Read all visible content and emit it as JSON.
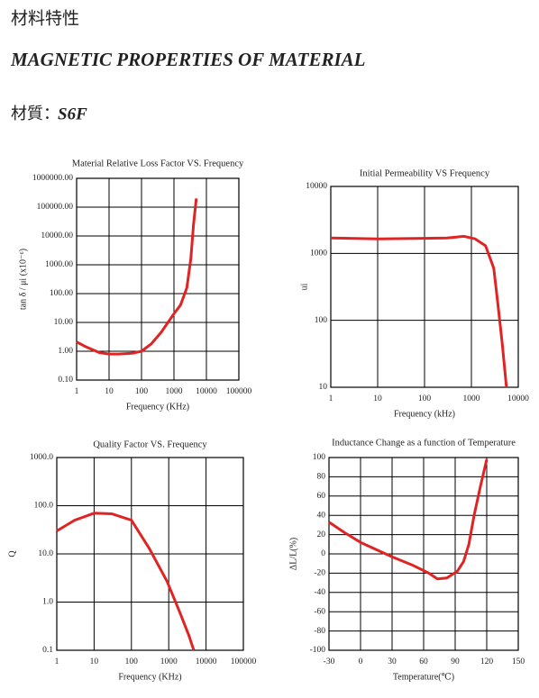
{
  "header": {
    "title_zh": "材料特性",
    "title_en": "MAGNETIC PROPERTIES OF MATERIAL",
    "material_label": "材質：",
    "material": "S6F"
  },
  "chart_data": [
    {
      "type": "line",
      "title": "Material Relative Loss Factor VS. Frequency",
      "x_label": "Frequency (KHz)",
      "y_label": "tan δ / μi (x10⁻⁶)",
      "xlog": true,
      "ylog": true,
      "grid": true,
      "color": "#e02424",
      "x": [
        1,
        2,
        5,
        10,
        20,
        50,
        100,
        200,
        400,
        1000,
        1600,
        2500,
        3300,
        4000,
        4900
      ],
      "values": [
        2.1,
        1.4,
        0.9,
        0.8,
        0.8,
        0.85,
        1.0,
        1.8,
        4.5,
        20,
        40,
        160,
        1600,
        25000,
        200000
      ],
      "xlim": [
        1,
        100000
      ],
      "xticks": [
        1,
        10,
        100,
        1000,
        10000,
        100000
      ],
      "ylim": [
        0.1,
        1000000
      ],
      "yticks": [
        {
          "value": 0.1,
          "label": "0.10"
        },
        {
          "value": 1,
          "label": "1.00"
        },
        {
          "value": 10,
          "label": "10.00"
        },
        {
          "value": 100,
          "label": "100.00"
        },
        {
          "value": 1000,
          "label": "1000.00"
        },
        {
          "value": 10000,
          "label": "10000.00"
        },
        {
          "value": 100000,
          "label": "100000.00"
        },
        {
          "value": 1000000,
          "label": "1000000.00"
        }
      ]
    },
    {
      "type": "line",
      "title": "Initial Permeability VS Frequency",
      "x_label": "Frequency (kHz)",
      "y_label": "ui",
      "xlog": true,
      "ylog": true,
      "grid": true,
      "color": "#e02424",
      "x": [
        1,
        10,
        100,
        300,
        700,
        1200,
        2000,
        3000,
        3600,
        4500,
        5600
      ],
      "values": [
        1700,
        1650,
        1680,
        1700,
        1800,
        1650,
        1300,
        600,
        200,
        48,
        10
      ],
      "xlim": [
        1,
        10000
      ],
      "xticks": [
        1,
        10,
        100,
        1000,
        10000
      ],
      "ylim": [
        10,
        10000
      ],
      "yticks": [
        10,
        100,
        1000,
        10000
      ]
    },
    {
      "type": "line",
      "title": "Quality Factor  VS. Frequency",
      "x_label": "Frequency (KHz)",
      "y_label": "Q",
      "xlog": true,
      "ylog": true,
      "grid": true,
      "color": "#e02424",
      "x": [
        1,
        3,
        10,
        30,
        100,
        300,
        900,
        2000,
        3500,
        4700
      ],
      "values": [
        30,
        50,
        70,
        68,
        50,
        13,
        2.7,
        0.6,
        0.2,
        0.1
      ],
      "xlim": [
        1,
        100000
      ],
      "xticks": [
        1,
        10,
        100,
        1000,
        10000,
        100000
      ],
      "ylim": [
        0.1,
        1000
      ],
      "yticks": [
        0.1,
        {
          "value": 1,
          "label": "1.0"
        },
        {
          "value": 10,
          "label": "10.0"
        },
        {
          "value": 100,
          "label": "100.0"
        },
        {
          "value": 1000,
          "label": "1000.0"
        }
      ]
    },
    {
      "type": "line",
      "title": "Inductance Change as a function of Temperature",
      "x_label": "Temperature(℃)",
      "y_label": "ΔL/L(%)",
      "xlog": false,
      "ylog": false,
      "grid": true,
      "color": "#e02424",
      "x": [
        -30,
        -15,
        0,
        30,
        50,
        65,
        73,
        82,
        92,
        98,
        103,
        108,
        114,
        120
      ],
      "values": [
        33,
        22,
        12,
        -3,
        -12,
        -20,
        -26,
        -25,
        -18,
        -8,
        10,
        40,
        70,
        98
      ],
      "xlim": [
        -30,
        150
      ],
      "xticks": [
        -30,
        0,
        30,
        60,
        90,
        120,
        150
      ],
      "ylim": [
        -100,
        100
      ],
      "yticks": [
        -100,
        -80,
        -60,
        -40,
        -20,
        0,
        20,
        40,
        60,
        80,
        100
      ]
    }
  ]
}
